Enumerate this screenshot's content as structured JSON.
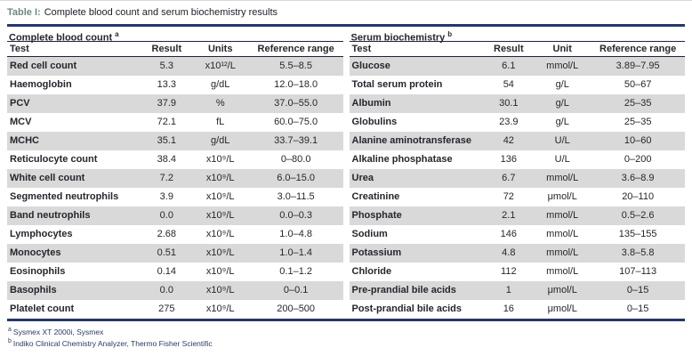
{
  "caption": {
    "label": "Table I:",
    "text": "Complete blood count and serum biochemistry results"
  },
  "tables": [
    {
      "section": "Complete blood count",
      "section_note": "a",
      "columns": [
        "Test",
        "Result",
        "Units",
        "Reference range"
      ],
      "rows": [
        [
          "Red cell count",
          "5.3",
          "x10¹²/L",
          "5.5–8.5"
        ],
        [
          "Haemoglobin",
          "13.3",
          "g/dL",
          "12.0–18.0"
        ],
        [
          "PCV",
          "37.9",
          "%",
          "37.0–55.0"
        ],
        [
          "MCV",
          "72.1",
          "fL",
          "60.0–75.0"
        ],
        [
          "MCHC",
          "35.1",
          "g/dL",
          "33.7–39.1"
        ],
        [
          "Reticulocyte count",
          "38.4",
          "x10⁹/L",
          "0–80.0"
        ],
        [
          "White cell count",
          "7.2",
          "x10⁹/L",
          "6.0–15.0"
        ],
        [
          "Segmented neutrophils",
          "3.9",
          "x10⁹/L",
          "3.0–11.5"
        ],
        [
          "Band neutrophils",
          "0.0",
          "x10⁹/L",
          "0.0–0.3"
        ],
        [
          "Lymphocytes",
          "2.68",
          "x10⁹/L",
          "1.0–4.8"
        ],
        [
          "Monocytes",
          "0.51",
          "x10⁹/L",
          "1.0–1.4"
        ],
        [
          "Eosinophils",
          "0.14",
          "x10⁹/L",
          "0.1–1.2"
        ],
        [
          "Basophils",
          "0.0",
          "x10⁹/L",
          "0–0.1"
        ],
        [
          "Platelet count",
          "275",
          "x10⁹/L",
          "200–500"
        ]
      ]
    },
    {
      "section": "Serum biochemistry",
      "section_note": "b",
      "columns": [
        "Test",
        "Result",
        "Unit",
        "Reference range"
      ],
      "rows": [
        [
          "Glucose",
          "6.1",
          "mmol/L",
          "3.89–7.95"
        ],
        [
          "Total serum protein",
          "54",
          "g/L",
          "50–67"
        ],
        [
          "Albumin",
          "30.1",
          "g/L",
          "25–35"
        ],
        [
          "Globulins",
          "23.9",
          "g/L",
          "25–35"
        ],
        [
          "Alanine aminotransferase",
          "42",
          "U/L",
          "10–60"
        ],
        [
          "Alkaline phosphatase",
          "136",
          "U/L",
          "0–200"
        ],
        [
          "Urea",
          "6.7",
          "mmol/L",
          "3.6–8.9"
        ],
        [
          "Creatinine",
          "72",
          "μmol/L",
          "20–110"
        ],
        [
          "Phosphate",
          "2.1",
          "mmol/L",
          "0.5–2.6"
        ],
        [
          "Sodium",
          "146",
          "mmol/L",
          "135–155"
        ],
        [
          "Potassium",
          "4.8",
          "mmol/L",
          "3.8–5.8"
        ],
        [
          "Chloride",
          "112",
          "mmol/L",
          "107–113"
        ],
        [
          "Pre-prandial bile acids",
          "1",
          "μmol/L",
          "0–15"
        ],
        [
          "Post-prandial bile acids",
          "16",
          "μmol/L",
          "0–15"
        ]
      ]
    }
  ],
  "footnotes": [
    {
      "marker": "a",
      "text": "Sysmex XT 2000i, Sysmex"
    },
    {
      "marker": "b",
      "text": "Indiko Clinical Chemistry Analyzer, Thermo Fisher Scientific"
    }
  ],
  "colors": {
    "rule_navy": "#25386b",
    "caption_accent_teal": "#6d8a7f",
    "row_shade_gray": "#d9d9d9",
    "body_text": "#26262e",
    "footnote_navy": "#2c3a64"
  }
}
